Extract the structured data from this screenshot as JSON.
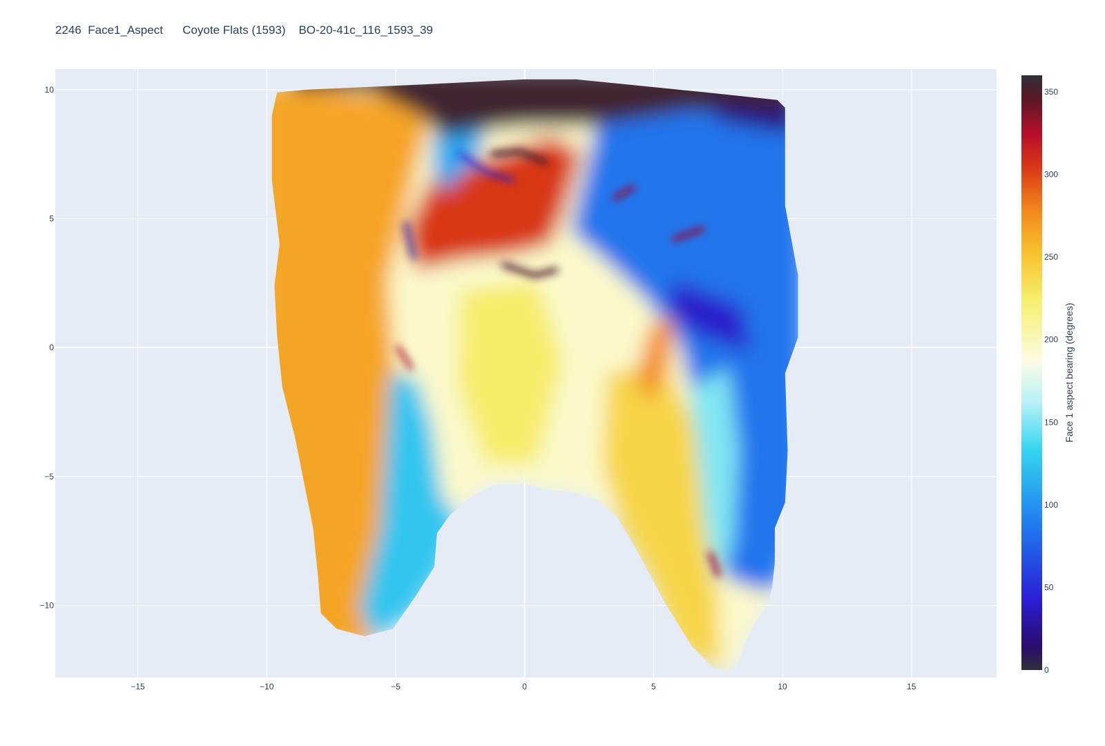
{
  "chart_data": {
    "type": "heatmap",
    "title": "2246  Face1_Aspect      Coyote Flats (1593)    BO-20-41c_116_1593_39",
    "xlabel": "",
    "ylabel": "",
    "xlim": [
      -18.2,
      18.3
    ],
    "ylim": [
      -12.8,
      10.8
    ],
    "x_ticks": [
      -15,
      -10,
      -5,
      0,
      5,
      10,
      15
    ],
    "x_tick_labels": [
      "−15",
      "−10",
      "−5",
      "0",
      "5",
      "10",
      "15"
    ],
    "y_ticks": [
      -10,
      -5,
      0,
      5,
      10
    ],
    "y_tick_labels": [
      "−10",
      "−5",
      "0",
      "5",
      "10"
    ],
    "grid": true,
    "plot_background": "#e5ecf6",
    "colorscale": [
      [
        0.0,
        "#30303a"
      ],
      [
        0.04,
        "#2b0a6e"
      ],
      [
        0.12,
        "#2a1fd6"
      ],
      [
        0.25,
        "#1f7ff0"
      ],
      [
        0.37,
        "#35d6ef"
      ],
      [
        0.45,
        "#b8f1f6"
      ],
      [
        0.52,
        "#fcfbe5"
      ],
      [
        0.62,
        "#f6f06e"
      ],
      [
        0.7,
        "#f8c230"
      ],
      [
        0.77,
        "#f38a1e"
      ],
      [
        0.84,
        "#dc3d17"
      ],
      [
        0.9,
        "#b80f2a"
      ],
      [
        0.96,
        "#5a1826"
      ],
      [
        1.0,
        "#30303a"
      ]
    ],
    "colorbar": {
      "title": "Face 1 aspect bearing (degrees)",
      "range": [
        0,
        360
      ],
      "ticks": [
        0,
        50,
        100,
        150,
        200,
        250,
        300,
        350
      ]
    },
    "surface_regions": [
      {
        "name": "left-face",
        "aspect_deg": 265
      },
      {
        "name": "upper-cavity-blue",
        "aspect_deg": 110
      },
      {
        "name": "upper-cavity-red",
        "aspect_deg": 305
      },
      {
        "name": "central-pale",
        "aspect_deg": 195
      },
      {
        "name": "right-face",
        "aspect_deg": 85
      },
      {
        "name": "top-rim",
        "aspect_deg": 355
      },
      {
        "name": "lower-left-root",
        "aspect_deg": 125
      },
      {
        "name": "lower-right-root",
        "aspect_deg": 240
      }
    ]
  }
}
